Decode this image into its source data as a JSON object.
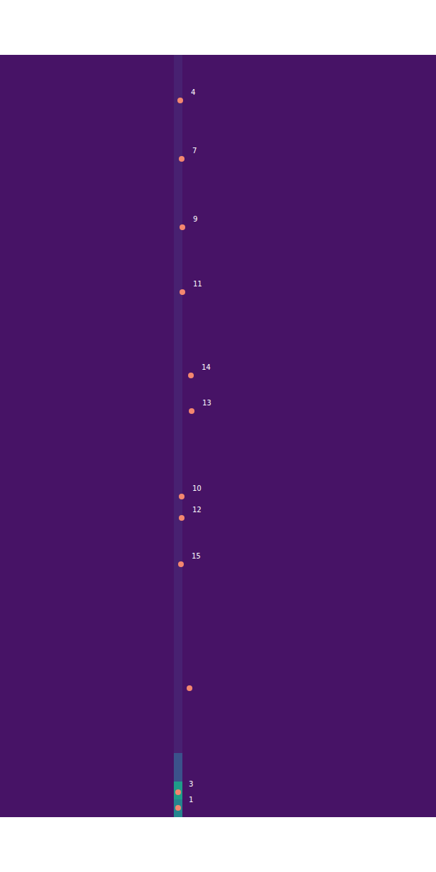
{
  "chart_data": {
    "type": "scatter",
    "x": [
      253,
      255,
      256,
      256,
      268,
      269,
      255,
      255,
      254,
      266,
      250,
      250
    ],
    "y": [
      64,
      146,
      242,
      333,
      450,
      500,
      620,
      650,
      715,
      889,
      1035,
      1057
    ],
    "labels": [
      "4",
      "7",
      "9",
      "11",
      "14",
      "13",
      "10",
      "12",
      "15",
      null,
      "3",
      "1"
    ],
    "color": "#f4876f",
    "marker": "circle",
    "xlim": [
      0,
      612
    ],
    "ylim": [
      1070,
      0
    ],
    "tick_labels": false,
    "grid": false,
    "heatmap": {
      "x_edges": [
        0,
        244,
        256,
        612
      ],
      "y_edges": [
        0,
        980,
        1020,
        1045,
        1070
      ],
      "z": [
        [
          0.05,
          0.09,
          0.05
        ],
        [
          0.05,
          0.25,
          0.05
        ],
        [
          0.05,
          0.55,
          0.05
        ],
        [
          0.05,
          0.45,
          0.05
        ]
      ],
      "zlim": [
        0,
        1
      ]
    }
  }
}
